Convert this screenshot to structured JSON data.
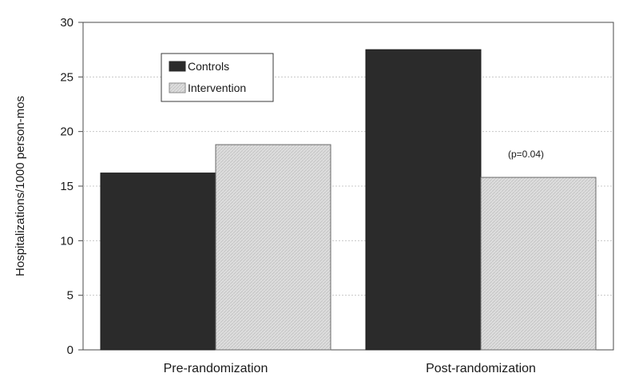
{
  "chart_data": {
    "type": "bar",
    "title": "",
    "xlabel": "",
    "ylabel": "Hospitalizations/1000 person-mos",
    "ylim": [
      0,
      30
    ],
    "yticks": [
      0,
      5,
      10,
      15,
      20,
      25,
      30
    ],
    "categories": [
      "Pre-randomization",
      "Post-randomization"
    ],
    "series": [
      {
        "name": "Controls",
        "values": [
          16.2,
          27.5
        ]
      },
      {
        "name": "Intervention",
        "values": [
          18.8,
          15.8
        ]
      }
    ],
    "annotations": [
      {
        "text": "(p=0.04)"
      }
    ],
    "grid": true,
    "legend_position": "top-left",
    "colors": {
      "Controls": "#2b2b2b",
      "Intervention": "#d9d9d9"
    }
  }
}
